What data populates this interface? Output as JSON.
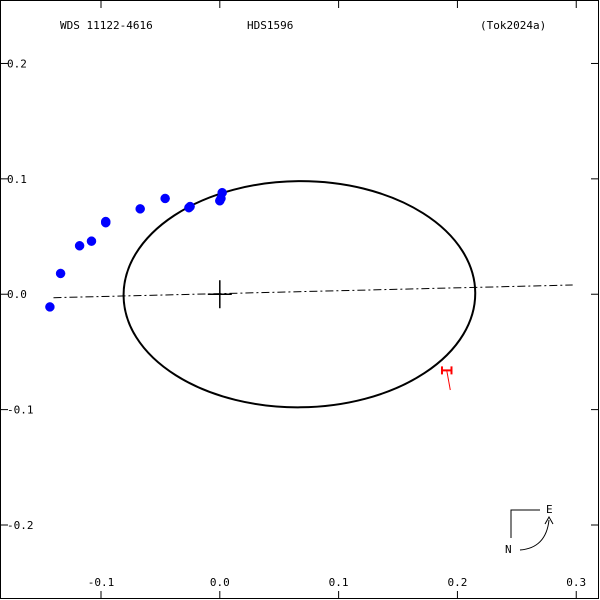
{
  "header": {
    "left": "WDS 11122-4616",
    "center": "HDS1596",
    "right": "(Tok2024a)"
  },
  "compass": {
    "east": "E",
    "north": "N"
  },
  "chart_data": {
    "type": "scatter",
    "title": "",
    "xlabel": "",
    "ylabel": "",
    "xlim": [
      -0.185,
      0.32
    ],
    "ylim": [
      -0.265,
      0.255
    ],
    "x_ticks": [
      {
        "value": -0.1,
        "label": "-0.1"
      },
      {
        "value": 0.0,
        "label": "0.0"
      },
      {
        "value": 0.1,
        "label": "0.1"
      },
      {
        "value": 0.2,
        "label": "0.2"
      },
      {
        "value": 0.3,
        "label": "0.3"
      }
    ],
    "y_ticks": [
      {
        "value": 0.2,
        "label": "0.2"
      },
      {
        "value": 0.1,
        "label": "0.1"
      },
      {
        "value": 0.0,
        "label": "0.0"
      },
      {
        "value": -0.1,
        "label": "-0.1"
      },
      {
        "value": -0.2,
        "label": "-0.2"
      }
    ],
    "orbit_ellipse": {
      "cx": 0.067,
      "cy": 0.0,
      "rx": 0.148,
      "ry": 0.098,
      "tilt_deg": -0.5
    },
    "line_of_nodes": [
      [
        -0.14,
        -0.003
      ],
      [
        0.297,
        0.008
      ]
    ],
    "primary": [
      0.0,
      0.0
    ],
    "observations": [
      {
        "x": -0.143,
        "y": -0.011
      },
      {
        "x": -0.134,
        "y": 0.018
      },
      {
        "x": -0.118,
        "y": 0.042
      },
      {
        "x": -0.108,
        "y": 0.046
      },
      {
        "x": -0.096,
        "y": 0.062
      },
      {
        "x": -0.096,
        "y": 0.063
      },
      {
        "x": -0.067,
        "y": 0.074
      },
      {
        "x": -0.046,
        "y": 0.083
      },
      {
        "x": -0.026,
        "y": 0.075
      },
      {
        "x": -0.025,
        "y": 0.076
      },
      {
        "x": 0.0,
        "y": 0.081
      },
      {
        "x": 0.001,
        "y": 0.083
      },
      {
        "x": 0.002,
        "y": 0.088
      }
    ],
    "highlight_point": {
      "x": 0.191,
      "y": -0.066,
      "xerr": 0.004
    },
    "highlight_residual": [
      [
        0.191,
        -0.066
      ],
      [
        0.194,
        -0.083
      ]
    ]
  }
}
